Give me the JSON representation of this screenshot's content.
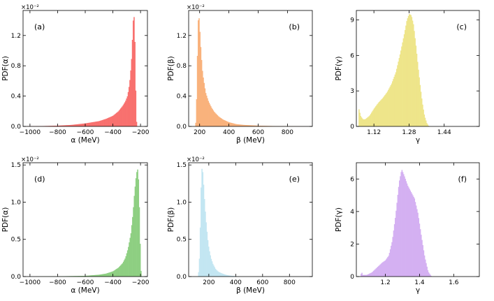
{
  "chart_data": [
    {
      "type": "histogram",
      "panel_label": "(a)",
      "xlabel": "α (MeV)",
      "ylabel": "PDF(α)",
      "scale_label": "×10⁻²",
      "xlim": [
        -1050,
        -150
      ],
      "ylim": [
        0,
        1.53
      ],
      "xticks": [
        -1000,
        -800,
        -600,
        -400,
        -200
      ],
      "xtick_labels": [
        "−1000",
        "−800",
        "−600",
        "−400",
        "−200"
      ],
      "yticks": [
        0,
        0.4,
        0.8,
        1.2
      ],
      "ytick_labels": [
        "0.0",
        "0.4",
        "0.8",
        "1.2"
      ],
      "color": "#f8716f",
      "profile": {
        "x": [
          -1020,
          -900,
          -800,
          -700,
          -600,
          -500,
          -450,
          -400,
          -360,
          -330,
          -310,
          -295,
          -285,
          -275,
          -265,
          -258,
          -252,
          -248,
          -242,
          -238,
          -234,
          -230,
          -226
        ],
        "y": [
          0.002,
          0.005,
          0.01,
          0.02,
          0.04,
          0.07,
          0.1,
          0.14,
          0.2,
          0.27,
          0.33,
          0.4,
          0.5,
          0.65,
          0.9,
          1.2,
          1.45,
          1.48,
          1.2,
          0.8,
          0.35,
          0.08,
          0.0
        ]
      }
    },
    {
      "type": "histogram",
      "panel_label": "(b)",
      "xlabel": "β (MeV)",
      "ylabel": "PDF(β)",
      "scale_label": "×10⁻²",
      "xlim": [
        125,
        970
      ],
      "ylim": [
        0,
        1.53
      ],
      "xticks": [
        200,
        400,
        600,
        800
      ],
      "xtick_labels": [
        "200",
        "400",
        "600",
        "800"
      ],
      "yticks": [
        0,
        0.4,
        0.8,
        1.2
      ],
      "ytick_labels": [
        "0.0",
        "0.4",
        "0.8",
        "1.2"
      ],
      "color": "#f9b27c",
      "profile": {
        "x": [
          170,
          176,
          180,
          185,
          190,
          195,
          200,
          210,
          220,
          240,
          260,
          280,
          300,
          330,
          360,
          400,
          450,
          500,
          600,
          700,
          800,
          900,
          960
        ],
        "y": [
          0.0,
          0.1,
          0.5,
          1.0,
          1.4,
          1.45,
          1.3,
          0.95,
          0.7,
          0.45,
          0.33,
          0.25,
          0.19,
          0.13,
          0.09,
          0.055,
          0.03,
          0.02,
          0.01,
          0.005,
          0.003,
          0.001,
          0.0
        ]
      }
    },
    {
      "type": "histogram",
      "panel_label": "(c)",
      "xlabel": "γ",
      "ylabel": "PDF(γ)",
      "scale_label": "",
      "xlim": [
        1.04,
        1.6
      ],
      "ylim": [
        0,
        9.8
      ],
      "xticks": [
        1.12,
        1.28,
        1.44
      ],
      "xtick_labels": [
        "1.12",
        "1.28",
        "1.44"
      ],
      "yticks": [
        0,
        3,
        6,
        9
      ],
      "ytick_labels": [
        "0",
        "3",
        "6",
        "9"
      ],
      "color": "#eee58a",
      "profile": {
        "x": [
          1.05,
          1.055,
          1.06,
          1.07,
          1.08,
          1.1,
          1.12,
          1.14,
          1.16,
          1.18,
          1.2,
          1.22,
          1.24,
          1.26,
          1.27,
          1.28,
          1.29,
          1.3,
          1.31,
          1.32,
          1.33,
          1.34,
          1.35,
          1.36,
          1.37
        ],
        "y": [
          1.6,
          1.2,
          0.85,
          0.6,
          0.6,
          0.9,
          1.5,
          2.0,
          2.4,
          2.9,
          3.6,
          4.6,
          6.2,
          8.0,
          9.0,
          9.5,
          9.4,
          8.6,
          7.0,
          5.2,
          3.5,
          2.0,
          0.9,
          0.3,
          0.0
        ]
      }
    },
    {
      "type": "histogram",
      "panel_label": "(d)",
      "xlabel": "α (MeV)",
      "ylabel": "PDF(α)",
      "scale_label": "×10⁻²",
      "xlim": [
        -1050,
        -150
      ],
      "ylim": [
        0,
        1.53
      ],
      "xticks": [
        -1000,
        -800,
        -600,
        -400,
        -200
      ],
      "xtick_labels": [
        "−1000",
        "−800",
        "−600",
        "−400",
        "−200"
      ],
      "yticks": [
        0,
        0.5,
        1.0,
        1.5
      ],
      "ytick_labels": [
        "0.0",
        "0.5",
        "1.0",
        "1.5"
      ],
      "color": "#8ecf82",
      "profile": {
        "x": [
          -1020,
          -800,
          -600,
          -500,
          -450,
          -400,
          -360,
          -330,
          -310,
          -290,
          -270,
          -255,
          -245,
          -235,
          -228,
          -222,
          -216,
          -210,
          -204,
          -198,
          -194
        ],
        "y": [
          0.0,
          0.003,
          0.01,
          0.025,
          0.04,
          0.07,
          0.12,
          0.18,
          0.25,
          0.38,
          0.58,
          0.85,
          1.1,
          1.3,
          1.4,
          1.45,
          1.35,
          1.0,
          0.5,
          0.1,
          0.0
        ]
      }
    },
    {
      "type": "histogram",
      "panel_label": "(e)",
      "xlabel": "β (MeV)",
      "ylabel": "PDF(β)",
      "scale_label": "×10⁻²",
      "xlim": [
        50,
        970
      ],
      "ylim": [
        0,
        1.53
      ],
      "xticks": [
        200,
        400,
        600,
        800
      ],
      "xtick_labels": [
        "200",
        "400",
        "600",
        "800"
      ],
      "yticks": [
        0,
        0.5,
        1.0,
        1.5
      ],
      "ytick_labels": [
        "0.0",
        "0.5",
        "1.0",
        "1.5"
      ],
      "color": "#c3e6f2",
      "profile": {
        "x": [
          120,
          128,
          135,
          142,
          148,
          155,
          162,
          170,
          180,
          190,
          200,
          215,
          230,
          250,
          270,
          300,
          330,
          360,
          400,
          440
        ],
        "y": [
          0.0,
          0.15,
          0.6,
          1.2,
          1.45,
          1.4,
          1.2,
          0.95,
          0.72,
          0.52,
          0.38,
          0.25,
          0.17,
          0.1,
          0.065,
          0.04,
          0.022,
          0.012,
          0.005,
          0.0
        ]
      }
    },
    {
      "type": "histogram",
      "panel_label": "(f)",
      "xlabel": "γ",
      "ylabel": "PDF(γ)",
      "scale_label": "",
      "xlim": [
        1.03,
        1.75
      ],
      "ylim": [
        0,
        7.0
      ],
      "xticks": [
        1.2,
        1.4,
        1.6
      ],
      "xtick_labels": [
        "1.2",
        "1.4",
        "1.6"
      ],
      "yticks": [
        0,
        2,
        4,
        6
      ],
      "ytick_labels": [
        "0",
        "2",
        "4",
        "6"
      ],
      "color": "#d4b0f2",
      "profile": {
        "x": [
          1.055,
          1.06,
          1.065,
          1.07,
          1.09,
          1.12,
          1.15,
          1.18,
          1.2,
          1.22,
          1.24,
          1.26,
          1.28,
          1.295,
          1.31,
          1.33,
          1.35,
          1.37,
          1.39,
          1.41,
          1.43,
          1.45,
          1.47
        ],
        "y": [
          0.0,
          0.35,
          0.1,
          0.1,
          0.1,
          0.25,
          0.55,
          0.85,
          1.0,
          1.3,
          2.2,
          3.8,
          5.8,
          6.6,
          6.2,
          5.6,
          5.2,
          4.8,
          3.9,
          2.5,
          1.2,
          0.3,
          0.0
        ]
      }
    }
  ]
}
